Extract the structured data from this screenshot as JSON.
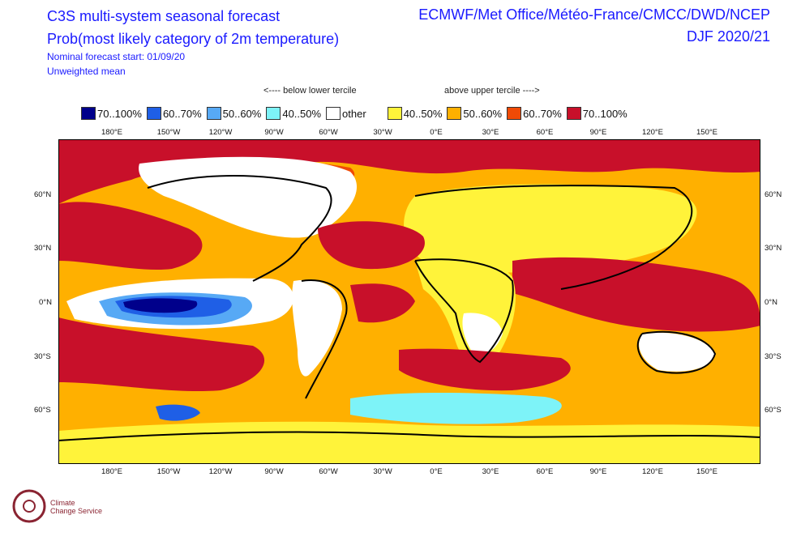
{
  "header": {
    "title_line1": "C3S multi-system seasonal forecast",
    "title_line2": "Prob(most likely category of 2m temperature)",
    "subtitle_line1": "Nominal forecast start: 01/09/20",
    "subtitle_line2": "Unweighted mean",
    "centres": "ECMWF/Met Office/Météo-France/CMCC/DWD/NCEP",
    "season": "DJF 2020/21"
  },
  "legend": {
    "below_label": "<---- below lower tercile",
    "above_label": "above upper tercile ---->",
    "items": [
      {
        "label": "70..100%",
        "color": "#00008b"
      },
      {
        "label": "60..70%",
        "color": "#1f5fe6"
      },
      {
        "label": "50..60%",
        "color": "#57a9f5"
      },
      {
        "label": "40..50%",
        "color": "#7df3f8"
      },
      {
        "label": "other",
        "color": "#ffffff"
      },
      {
        "label": "40..50%",
        "color": "#fff33a"
      },
      {
        "label": "50..60%",
        "color": "#ffb000"
      },
      {
        "label": "60..70%",
        "color": "#f04a06"
      },
      {
        "label": "70..100%",
        "color": "#c8102a"
      }
    ]
  },
  "axes": {
    "lon_labels": [
      "180°E",
      "150°W",
      "120°W",
      "90°W",
      "60°W",
      "30°W",
      "0°E",
      "30°E",
      "60°E",
      "90°E",
      "120°E",
      "150°E"
    ],
    "lat_labels_left": [
      "60°N",
      "30°N",
      "0°N",
      "30°S",
      "60°S"
    ],
    "lat_labels_right": [
      "60°N",
      "30°N",
      "0°N",
      "30°S",
      "60°S"
    ]
  },
  "logo": {
    "line1": "Climate",
    "line2": "Change Service"
  }
}
